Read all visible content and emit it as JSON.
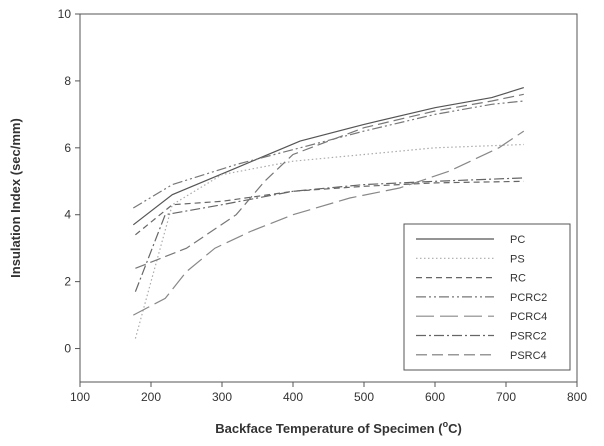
{
  "chart_data": {
    "type": "line",
    "xlabel": "Backface Temperature of Specimen (",
    "xlabel_sup": "o",
    "xlabel_tail": "C)",
    "ylabel": "Insulation Index (sec/mm)",
    "xlim": [
      100,
      800
    ],
    "ylim": [
      -1,
      10
    ],
    "x_ticks": [
      100,
      200,
      300,
      400,
      500,
      600,
      700,
      800
    ],
    "y_ticks": [
      0,
      2,
      4,
      6,
      8,
      10
    ],
    "grid": false,
    "legend_position": "bottom-right",
    "series": [
      {
        "name": "PC",
        "dash": "solid",
        "color": "#555555",
        "points": [
          [
            175,
            3.7
          ],
          [
            230,
            4.6
          ],
          [
            320,
            5.4
          ],
          [
            410,
            6.2
          ],
          [
            500,
            6.7
          ],
          [
            600,
            7.2
          ],
          [
            680,
            7.5
          ],
          [
            725,
            7.8
          ]
        ]
      },
      {
        "name": "PS",
        "dash": "dot",
        "color": "#aaaaaa",
        "points": [
          [
            178,
            0.3
          ],
          [
            200,
            2.0
          ],
          [
            230,
            4.3
          ],
          [
            300,
            5.2
          ],
          [
            400,
            5.6
          ],
          [
            500,
            5.8
          ],
          [
            600,
            6.0
          ],
          [
            725,
            6.1
          ]
        ]
      },
      {
        "name": "RC",
        "dash": "dash-short",
        "color": "#666666",
        "points": [
          [
            178,
            3.4
          ],
          [
            230,
            4.3
          ],
          [
            300,
            4.4
          ],
          [
            400,
            4.7
          ],
          [
            500,
            4.85
          ],
          [
            600,
            4.95
          ],
          [
            725,
            5.0
          ]
        ]
      },
      {
        "name": "PCRC2",
        "dash": "dash-dot-dot",
        "color": "#777777",
        "points": [
          [
            175,
            4.2
          ],
          [
            230,
            4.9
          ],
          [
            320,
            5.5
          ],
          [
            410,
            6.0
          ],
          [
            500,
            6.5
          ],
          [
            600,
            7.0
          ],
          [
            680,
            7.3
          ],
          [
            725,
            7.4
          ]
        ]
      },
      {
        "name": "PCRC4",
        "dash": "dash-long",
        "color": "#888888",
        "points": [
          [
            175,
            1.0
          ],
          [
            220,
            1.5
          ],
          [
            250,
            2.3
          ],
          [
            290,
            3.0
          ],
          [
            340,
            3.5
          ],
          [
            400,
            4.0
          ],
          [
            480,
            4.5
          ],
          [
            550,
            4.8
          ],
          [
            620,
            5.3
          ],
          [
            690,
            6.0
          ],
          [
            725,
            6.5
          ]
        ]
      },
      {
        "name": "PSRC2",
        "dash": "dash-dot",
        "color": "#666666",
        "points": [
          [
            178,
            1.7
          ],
          [
            220,
            4.0
          ],
          [
            300,
            4.3
          ],
          [
            400,
            4.7
          ],
          [
            500,
            4.9
          ],
          [
            600,
            5.0
          ],
          [
            725,
            5.1
          ]
        ]
      },
      {
        "name": "PSRC4",
        "dash": "dash-medium",
        "color": "#777777",
        "points": [
          [
            178,
            2.4
          ],
          [
            250,
            3.0
          ],
          [
            320,
            4.0
          ],
          [
            360,
            5.0
          ],
          [
            400,
            5.8
          ],
          [
            500,
            6.6
          ],
          [
            600,
            7.1
          ],
          [
            680,
            7.4
          ],
          [
            725,
            7.6
          ]
        ]
      }
    ]
  }
}
